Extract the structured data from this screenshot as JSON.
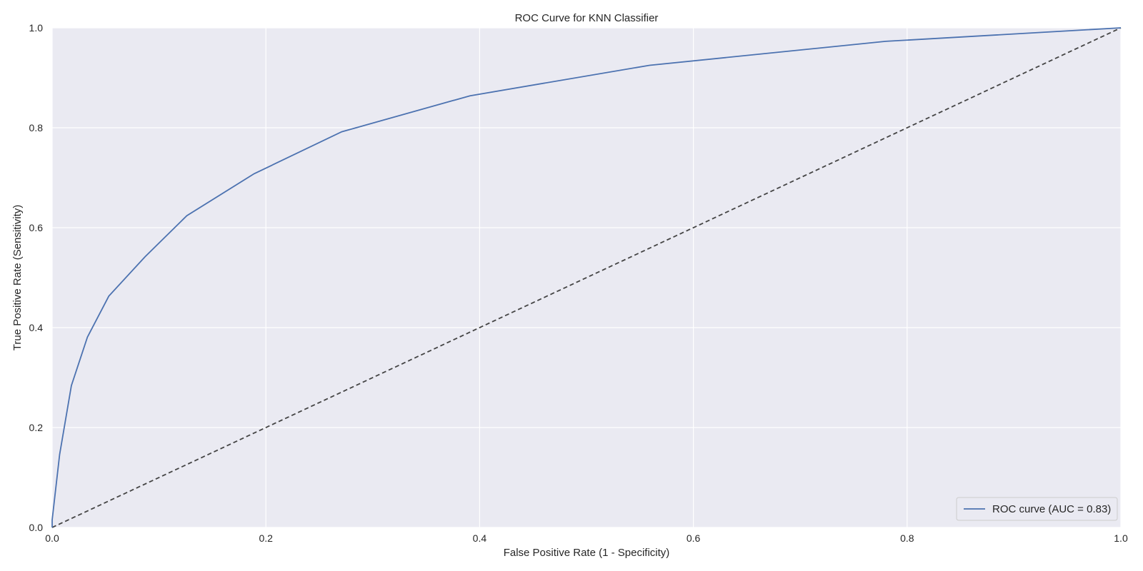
{
  "chart_data": {
    "type": "line",
    "title": "ROC Curve for KNN Classifier",
    "xlabel": "False Positive Rate (1 - Specificity)",
    "ylabel": "True Positive Rate (Sensitivity)",
    "xlim": [
      0.0,
      1.0
    ],
    "ylim": [
      0.0,
      1.0
    ],
    "xticks": [
      "0.0",
      "0.2",
      "0.4",
      "0.6",
      "0.8",
      "1.0"
    ],
    "yticks": [
      "0.0",
      "0.2",
      "0.4",
      "0.6",
      "0.8",
      "1.0"
    ],
    "grid": true,
    "legend_position": "bottom-right",
    "series": [
      {
        "name": "ROC curve (AUC = 0.83)",
        "color": "#4c72b0",
        "x": [
          0.0,
          0.0,
          0.007,
          0.018,
          0.033,
          0.053,
          0.087,
          0.126,
          0.189,
          0.271,
          0.391,
          0.559,
          0.78,
          1.0
        ],
        "y": [
          0.0,
          0.015,
          0.146,
          0.284,
          0.381,
          0.463,
          0.542,
          0.624,
          0.708,
          0.792,
          0.864,
          0.925,
          0.973,
          1.0
        ]
      }
    ],
    "reference_line": {
      "color": "#444444",
      "x": [
        0.0,
        1.0
      ],
      "y": [
        0.0,
        1.0
      ]
    },
    "colors": {
      "plot_background": "#eaeaf2",
      "grid": "#ffffff"
    }
  }
}
